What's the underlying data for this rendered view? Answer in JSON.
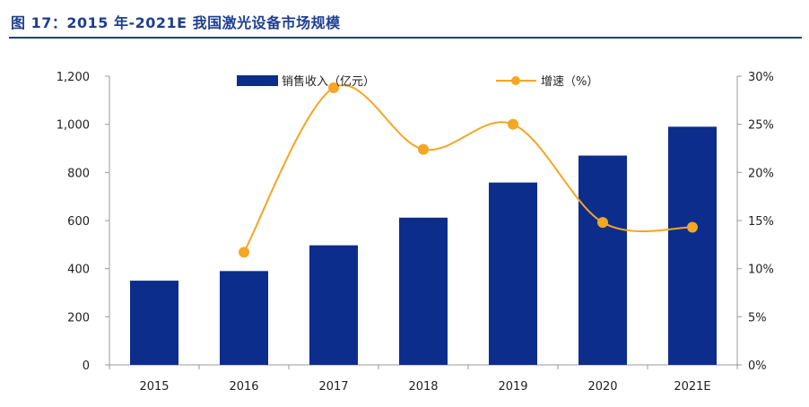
{
  "title": "图 17：2015 年-2021E 我国激光设备市场规模",
  "colors": {
    "title": "#1f3f8f",
    "bar": "#0c2d8c",
    "line": "#f5a623"
  },
  "chart_data": {
    "type": "bar+line",
    "title": "图 17：2015 年-2021E 我国激光设备市场规模",
    "categories": [
      "2015",
      "2016",
      "2017",
      "2018",
      "2019",
      "2020",
      "2021E"
    ],
    "series": [
      {
        "name": "销售收入（亿元）",
        "type": "bar",
        "axis": "left",
        "values": [
          350,
          390,
          497,
          612,
          758,
          870,
          990
        ]
      },
      {
        "name": "增速（%）",
        "type": "line",
        "axis": "right",
        "values": [
          null,
          11.7,
          28.8,
          22.4,
          25.0,
          14.8,
          14.3
        ]
      }
    ],
    "y_left": {
      "ylim": [
        0,
        1200
      ],
      "ticks": [
        0,
        200,
        400,
        600,
        800,
        1000,
        1200
      ],
      "tick_labels": [
        "0",
        "200",
        "400",
        "600",
        "800",
        "1,000",
        "1,200"
      ]
    },
    "y_right": {
      "ylim": [
        0,
        30
      ],
      "ticks": [
        0,
        5,
        10,
        15,
        20,
        25,
        30
      ],
      "tick_labels": [
        "0%",
        "5%",
        "10%",
        "15%",
        "20%",
        "25%",
        "30%"
      ]
    },
    "legend": {
      "placement": "top-center",
      "labels": [
        "销售收入（亿元）",
        "增速（%）"
      ]
    },
    "grid": false
  }
}
